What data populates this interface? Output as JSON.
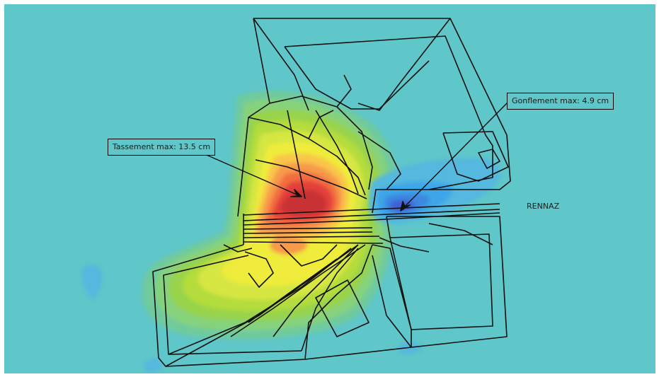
{
  "annotations": {
    "tassement_label": "Tassement max: 13.5 cm",
    "gonflement_label": "Gonflement max: 4.9 cm",
    "site_label": "RENNAZ"
  },
  "colors": {
    "background": "#5fc6c9",
    "settlement_scale": [
      "#6fca9c",
      "#86d27c",
      "#98d34c",
      "#b4dc3c",
      "#d6e642",
      "#efec3a",
      "#f9c64a",
      "#f79a4c",
      "#f26d40",
      "#e3403a",
      "#c93036"
    ],
    "heave_scale": [
      "#55b8de",
      "#3ea6e8",
      "#3d87e0",
      "#3f5fd6"
    ],
    "mesh_lines": "#111111"
  }
}
